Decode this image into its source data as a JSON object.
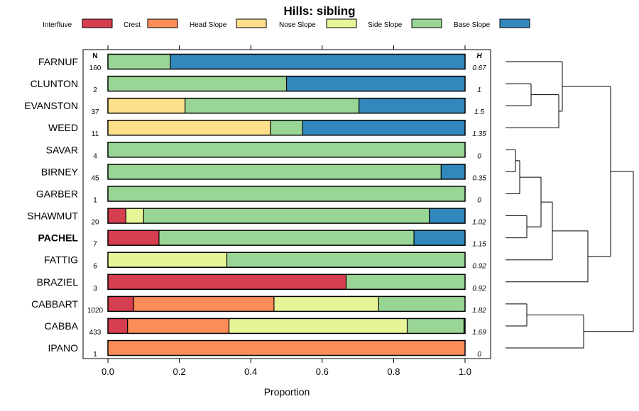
{
  "chart_data": {
    "type": "bar",
    "orientation": "horizontal",
    "stacked": true,
    "title": "Hills: sibling",
    "xlabel": "Proportion",
    "xlim": [
      0,
      1
    ],
    "xticks": [
      "0.0",
      "0.2",
      "0.4",
      "0.6",
      "0.8",
      "1.0"
    ],
    "n_header": "N",
    "h_header": "H",
    "legend_position": "top",
    "legend": [
      {
        "name": "Interfluve",
        "color": "#d53e4f"
      },
      {
        "name": "Crest",
        "color": "#fc8d59"
      },
      {
        "name": "Head Slope",
        "color": "#fee08b"
      },
      {
        "name": "Nose Slope",
        "color": "#e6f598"
      },
      {
        "name": "Side Slope",
        "color": "#99d594"
      },
      {
        "name": "Base Slope",
        "color": "#3288bd"
      }
    ],
    "rows": [
      {
        "label": "FARNUF",
        "n": "160",
        "h": "0.67",
        "bold": false,
        "values": [
          0,
          0,
          0,
          0,
          0.175,
          0.825
        ]
      },
      {
        "label": "CLUNTON",
        "n": "2",
        "h": "1",
        "bold": false,
        "values": [
          0,
          0,
          0,
          0,
          0.5,
          0.5
        ]
      },
      {
        "label": "EVANSTON",
        "n": "37",
        "h": "1.5",
        "bold": false,
        "values": [
          0,
          0,
          0.216,
          0,
          0.487,
          0.297
        ]
      },
      {
        "label": "WEED",
        "n": "11",
        "h": "1.35",
        "bold": false,
        "values": [
          0,
          0,
          0.455,
          0,
          0.09,
          0.455
        ]
      },
      {
        "label": "SAVAR",
        "n": "4",
        "h": "0",
        "bold": false,
        "values": [
          0,
          0,
          0,
          0,
          1.0,
          0
        ]
      },
      {
        "label": "BIRNEY",
        "n": "45",
        "h": "0.35",
        "bold": false,
        "values": [
          0,
          0,
          0,
          0,
          0.933,
          0.067
        ]
      },
      {
        "label": "GARBER",
        "n": "1",
        "h": "0",
        "bold": false,
        "values": [
          0,
          0,
          0,
          0,
          1.0,
          0
        ]
      },
      {
        "label": "SHAWMUT",
        "n": "20",
        "h": "1.02",
        "bold": false,
        "values": [
          0.05,
          0,
          0,
          0.05,
          0.8,
          0.1
        ]
      },
      {
        "label": "PACHEL",
        "n": "7",
        "h": "1.15",
        "bold": true,
        "values": [
          0.143,
          0,
          0,
          0,
          0.714,
          0.143
        ]
      },
      {
        "label": "FATTIG",
        "n": "6",
        "h": "0.92",
        "bold": false,
        "values": [
          0,
          0,
          0,
          0.333,
          0.667,
          0
        ]
      },
      {
        "label": "BRAZIEL",
        "n": "3",
        "h": "0.92",
        "bold": false,
        "values": [
          0.667,
          0,
          0,
          0,
          0.333,
          0
        ]
      },
      {
        "label": "CABBART",
        "n": "1020",
        "h": "1.82",
        "bold": false,
        "values": [
          0.072,
          0.393,
          0,
          0.293,
          0.242,
          0
        ]
      },
      {
        "label": "CABBA",
        "n": "433",
        "h": "1.69",
        "bold": false,
        "values": [
          0.055,
          0.284,
          0,
          0.499,
          0.159,
          0.003
        ]
      },
      {
        "label": "IPANO",
        "n": "1",
        "h": "0",
        "bold": false,
        "values": [
          0,
          1.0,
          0,
          0,
          0,
          0
        ]
      }
    ]
  }
}
